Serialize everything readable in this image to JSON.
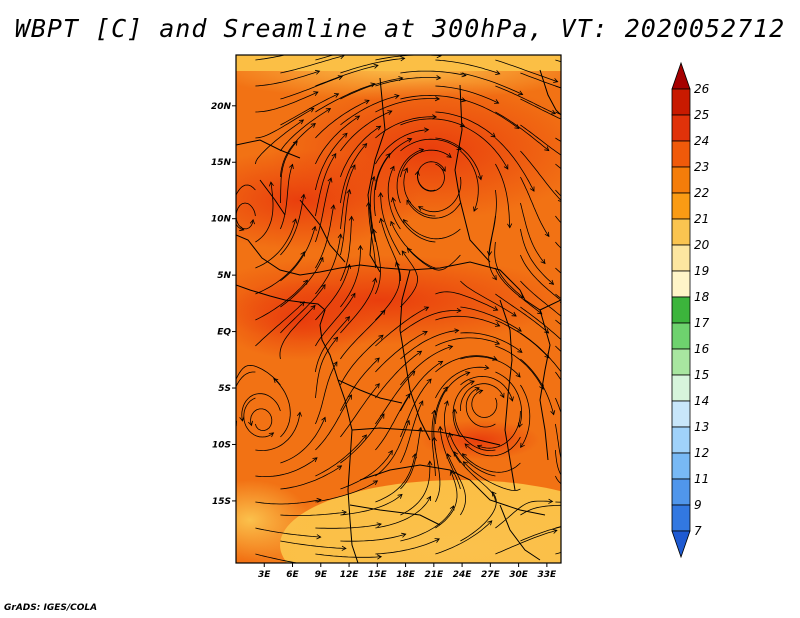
{
  "title": "WBPT [C] and Sreamline at 300hPa, VT: 2020052712",
  "credit": "GrADS: IGES/COLA",
  "map": {
    "lat_labels": [
      "20N",
      "15N",
      "10N",
      "5N",
      "EQ",
      "5S",
      "10S",
      "15S"
    ],
    "lat_values": [
      20,
      15,
      10,
      5,
      0,
      -5,
      -10,
      -15
    ],
    "lon_labels": [
      "3E",
      "6E",
      "9E",
      "12E",
      "15E",
      "18E",
      "21E",
      "24E",
      "27E",
      "30E",
      "33E"
    ],
    "lon_values": [
      3,
      6,
      9,
      12,
      15,
      18,
      21,
      24,
      27,
      30,
      33
    ],
    "lon_range": [
      0,
      34.5
    ],
    "lat_range": [
      -20.5,
      24.5
    ]
  },
  "colorbar": {
    "levels": [
      "26",
      "25",
      "24",
      "23",
      "22",
      "21",
      "20",
      "19",
      "18",
      "17",
      "16",
      "15",
      "14",
      "13",
      "12",
      "11",
      "9",
      "7"
    ],
    "colors": [
      "#a50000",
      "#c81a00",
      "#e0320a",
      "#f05a0a",
      "#f57d0a",
      "#fa9b14",
      "#fac450",
      "#fde6a0",
      "#fff5c8",
      "#3cb43c",
      "#6ed26e",
      "#a8e6a0",
      "#d7f5dc",
      "#c8e6fa",
      "#a0d2fa",
      "#78b9f5",
      "#5096eb",
      "#3278e1",
      "#1e5ad2"
    ]
  }
}
